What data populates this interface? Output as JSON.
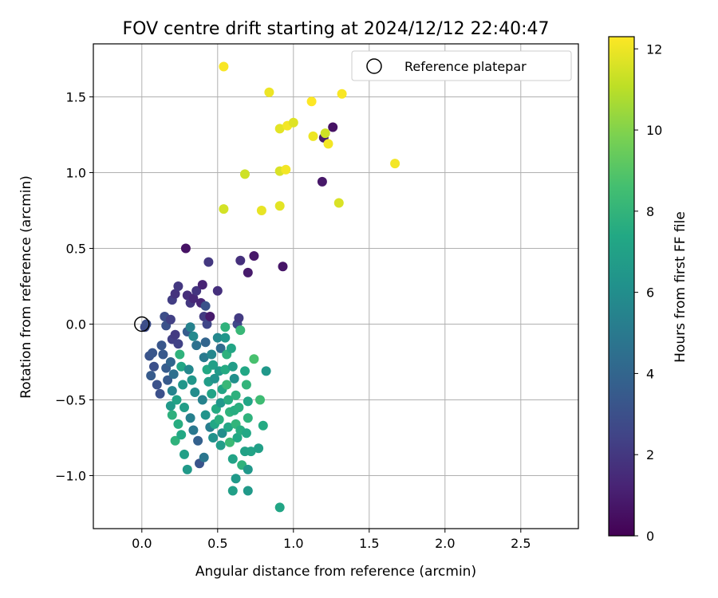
{
  "chart_data": {
    "type": "scatter",
    "title": "FOV centre drift starting at 2024/12/12 22:40:47",
    "xlabel": "Angular distance from reference (arcmin)",
    "ylabel": "Rotation from reference (arcmin)",
    "xlim": [
      -0.32,
      2.88
    ],
    "ylim": [
      -1.35,
      1.85
    ],
    "xticks": [
      0.0,
      0.5,
      1.0,
      1.5,
      2.0,
      2.5
    ],
    "xtick_labels": [
      "0.0",
      "0.5",
      "1.0",
      "1.5",
      "2.0",
      "2.5"
    ],
    "yticks": [
      -1.0,
      -0.5,
      0.0,
      0.5,
      1.0,
      1.5
    ],
    "ytick_labels": [
      "−1.0",
      "−0.5",
      "0.0",
      "0.5",
      "1.0",
      "1.5"
    ],
    "grid": true,
    "colormap": "viridis",
    "colorbar": {
      "label": "Hours from first FF file",
      "range": [
        0,
        12.3
      ],
      "ticks": [
        0,
        2,
        4,
        6,
        8,
        10,
        12
      ],
      "tick_labels": [
        "0",
        "2",
        "4",
        "6",
        "8",
        "10",
        "12"
      ]
    },
    "legend": {
      "position": "top-right",
      "entries": [
        {
          "label": "Reference platepar",
          "marker": "open-circle"
        }
      ]
    },
    "reference_point": {
      "x": 0.0,
      "y": 0.0
    },
    "points": [
      {
        "x": 0.02,
        "y": -0.02,
        "h": 2.8
      },
      {
        "x": 0.03,
        "y": 0.0,
        "h": 2.9
      },
      {
        "x": 0.05,
        "y": -0.21,
        "h": 3.2
      },
      {
        "x": 0.07,
        "y": -0.19,
        "h": 3.3
      },
      {
        "x": 0.08,
        "y": -0.28,
        "h": 3.0
      },
      {
        "x": 0.06,
        "y": -0.34,
        "h": 3.5
      },
      {
        "x": 0.1,
        "y": -0.4,
        "h": 3.1
      },
      {
        "x": 0.12,
        "y": -0.46,
        "h": 3.0
      },
      {
        "x": 0.13,
        "y": -0.14,
        "h": 3.3
      },
      {
        "x": 0.14,
        "y": -0.2,
        "h": 3.4
      },
      {
        "x": 0.16,
        "y": -0.29,
        "h": 3.6
      },
      {
        "x": 0.17,
        "y": -0.37,
        "h": 3.5
      },
      {
        "x": 0.15,
        "y": 0.05,
        "h": 2.9
      },
      {
        "x": 0.16,
        "y": -0.01,
        "h": 3.1
      },
      {
        "x": 0.19,
        "y": 0.03,
        "h": 2.3
      },
      {
        "x": 0.2,
        "y": 0.16,
        "h": 2.2
      },
      {
        "x": 0.22,
        "y": 0.2,
        "h": 1.8
      },
      {
        "x": 0.24,
        "y": 0.25,
        "h": 2.0
      },
      {
        "x": 0.2,
        "y": -0.1,
        "h": 2.3
      },
      {
        "x": 0.22,
        "y": -0.07,
        "h": 2.1
      },
      {
        "x": 0.24,
        "y": -0.13,
        "h": 2.4
      },
      {
        "x": 0.19,
        "y": -0.25,
        "h": 4.0
      },
      {
        "x": 0.21,
        "y": -0.33,
        "h": 4.5
      },
      {
        "x": 0.2,
        "y": -0.44,
        "h": 5.5
      },
      {
        "x": 0.19,
        "y": -0.54,
        "h": 6.6
      },
      {
        "x": 0.2,
        "y": -0.6,
        "h": 7.8
      },
      {
        "x": 0.23,
        "y": -0.5,
        "h": 7.0
      },
      {
        "x": 0.24,
        "y": -0.66,
        "h": 7.6
      },
      {
        "x": 0.22,
        "y": -0.77,
        "h": 7.9
      },
      {
        "x": 0.26,
        "y": -0.73,
        "h": 7.4
      },
      {
        "x": 0.28,
        "y": -0.86,
        "h": 6.9
      },
      {
        "x": 0.3,
        "y": -0.96,
        "h": 6.6
      },
      {
        "x": 0.25,
        "y": -0.2,
        "h": 7.9
      },
      {
        "x": 0.26,
        "y": -0.28,
        "h": 7.2
      },
      {
        "x": 0.27,
        "y": -0.4,
        "h": 6.4
      },
      {
        "x": 0.28,
        "y": -0.55,
        "h": 6.8
      },
      {
        "x": 0.29,
        "y": 0.5,
        "h": 0.6
      },
      {
        "x": 0.3,
        "y": 0.19,
        "h": 1.6
      },
      {
        "x": 0.32,
        "y": 0.14,
        "h": 2.0
      },
      {
        "x": 0.34,
        "y": 0.17,
        "h": 1.4
      },
      {
        "x": 0.36,
        "y": 0.22,
        "h": 1.9
      },
      {
        "x": 0.3,
        "y": -0.05,
        "h": 3.6
      },
      {
        "x": 0.32,
        "y": -0.02,
        "h": 5.4
      },
      {
        "x": 0.34,
        "y": -0.08,
        "h": 5.8
      },
      {
        "x": 0.36,
        "y": -0.14,
        "h": 4.6
      },
      {
        "x": 0.31,
        "y": -0.3,
        "h": 5.7
      },
      {
        "x": 0.33,
        "y": -0.37,
        "h": 6.4
      },
      {
        "x": 0.35,
        "y": -0.45,
        "h": 5.9
      },
      {
        "x": 0.32,
        "y": -0.62,
        "h": 5.3
      },
      {
        "x": 0.34,
        "y": -0.7,
        "h": 4.9
      },
      {
        "x": 0.37,
        "y": -0.77,
        "h": 3.8
      },
      {
        "x": 0.38,
        "y": -0.92,
        "h": 3.2
      },
      {
        "x": 0.4,
        "y": 0.26,
        "h": 1.2
      },
      {
        "x": 0.39,
        "y": 0.14,
        "h": 1.3
      },
      {
        "x": 0.42,
        "y": 0.12,
        "h": 3.1
      },
      {
        "x": 0.41,
        "y": 0.05,
        "h": 2.1
      },
      {
        "x": 0.43,
        "y": 0.0,
        "h": 2.6
      },
      {
        "x": 0.42,
        "y": -0.12,
        "h": 4.0
      },
      {
        "x": 0.41,
        "y": -0.22,
        "h": 5.0
      },
      {
        "x": 0.43,
        "y": -0.3,
        "h": 7.4
      },
      {
        "x": 0.44,
        "y": -0.38,
        "h": 6.8
      },
      {
        "x": 0.4,
        "y": -0.5,
        "h": 5.4
      },
      {
        "x": 0.42,
        "y": -0.6,
        "h": 6.3
      },
      {
        "x": 0.45,
        "y": -0.68,
        "h": 5.2
      },
      {
        "x": 0.41,
        "y": -0.88,
        "h": 4.8
      },
      {
        "x": 0.44,
        "y": 0.41,
        "h": 2.0
      },
      {
        "x": 0.45,
        "y": 0.05,
        "h": 0.9
      },
      {
        "x": 0.46,
        "y": -0.2,
        "h": 5.6
      },
      {
        "x": 0.47,
        "y": -0.27,
        "h": 6.9
      },
      {
        "x": 0.48,
        "y": -0.36,
        "h": 6.2
      },
      {
        "x": 0.46,
        "y": -0.46,
        "h": 7.1
      },
      {
        "x": 0.49,
        "y": -0.56,
        "h": 7.5
      },
      {
        "x": 0.48,
        "y": -0.66,
        "h": 7.3
      },
      {
        "x": 0.47,
        "y": -0.75,
        "h": 6.2
      },
      {
        "x": 0.5,
        "y": 0.22,
        "h": 1.7
      },
      {
        "x": 0.5,
        "y": -0.09,
        "h": 5.7
      },
      {
        "x": 0.52,
        "y": -0.16,
        "h": 4.3
      },
      {
        "x": 0.51,
        "y": -0.31,
        "h": 6.6
      },
      {
        "x": 0.53,
        "y": -0.43,
        "h": 7.2
      },
      {
        "x": 0.52,
        "y": -0.52,
        "h": 6.5
      },
      {
        "x": 0.51,
        "y": -0.63,
        "h": 7.7
      },
      {
        "x": 0.53,
        "y": -0.72,
        "h": 6.0
      },
      {
        "x": 0.52,
        "y": -0.8,
        "h": 6.8
      },
      {
        "x": 0.55,
        "y": -0.02,
        "h": 7.9
      },
      {
        "x": 0.55,
        "y": -0.09,
        "h": 6.4
      },
      {
        "x": 0.56,
        "y": -0.2,
        "h": 7.8
      },
      {
        "x": 0.55,
        "y": -0.3,
        "h": 7.5
      },
      {
        "x": 0.56,
        "y": -0.4,
        "h": 8.2
      },
      {
        "x": 0.57,
        "y": -0.5,
        "h": 7.6
      },
      {
        "x": 0.58,
        "y": -0.58,
        "h": 7.9
      },
      {
        "x": 0.57,
        "y": -0.68,
        "h": 7.3
      },
      {
        "x": 0.58,
        "y": -0.78,
        "h": 8.3
      },
      {
        "x": 0.6,
        "y": -0.89,
        "h": 7.1
      },
      {
        "x": 0.59,
        "y": -0.16,
        "h": 7.2
      },
      {
        "x": 0.6,
        "y": -0.28,
        "h": 6.8
      },
      {
        "x": 0.61,
        "y": -0.36,
        "h": 6.1
      },
      {
        "x": 0.62,
        "y": -0.47,
        "h": 7.8
      },
      {
        "x": 0.61,
        "y": -0.57,
        "h": 7.6
      },
      {
        "x": 0.62,
        "y": -0.66,
        "h": 8.0
      },
      {
        "x": 0.63,
        "y": -0.75,
        "h": 7.4
      },
      {
        "x": 0.62,
        "y": -1.02,
        "h": 6.6
      },
      {
        "x": 0.6,
        "y": -1.1,
        "h": 6.9
      },
      {
        "x": 0.63,
        "y": 0.0,
        "h": 2.6
      },
      {
        "x": 0.64,
        "y": 0.04,
        "h": 2.1
      },
      {
        "x": 0.65,
        "y": -0.04,
        "h": 8.2
      },
      {
        "x": 0.64,
        "y": -0.55,
        "h": 7.7
      },
      {
        "x": 0.65,
        "y": -0.7,
        "h": 7.6
      },
      {
        "x": 0.68,
        "y": -0.84,
        "h": 7.0
      },
      {
        "x": 0.66,
        "y": -0.93,
        "h": 7.9
      },
      {
        "x": 0.65,
        "y": 0.42,
        "h": 1.7
      },
      {
        "x": 0.7,
        "y": 0.34,
        "h": 0.9
      },
      {
        "x": 0.68,
        "y": -0.31,
        "h": 7.3
      },
      {
        "x": 0.69,
        "y": -0.4,
        "h": 8.0
      },
      {
        "x": 0.7,
        "y": -0.51,
        "h": 7.2
      },
      {
        "x": 0.7,
        "y": -0.62,
        "h": 7.9
      },
      {
        "x": 0.69,
        "y": -0.72,
        "h": 7.3
      },
      {
        "x": 0.7,
        "y": -0.96,
        "h": 6.5
      },
      {
        "x": 0.7,
        "y": -1.1,
        "h": 6.6
      },
      {
        "x": 0.72,
        "y": -0.84,
        "h": 7.1
      },
      {
        "x": 0.74,
        "y": 0.45,
        "h": 0.8
      },
      {
        "x": 0.74,
        "y": -0.23,
        "h": 8.7
      },
      {
        "x": 0.77,
        "y": -0.82,
        "h": 6.9
      },
      {
        "x": 0.78,
        "y": -0.5,
        "h": 8.4
      },
      {
        "x": 0.8,
        "y": -0.67,
        "h": 7.5
      },
      {
        "x": 0.82,
        "y": -0.31,
        "h": 6.5
      },
      {
        "x": 0.91,
        "y": -1.21,
        "h": 7.2
      },
      {
        "x": 0.93,
        "y": 0.38,
        "h": 0.7
      },
      {
        "x": 1.19,
        "y": 0.94,
        "h": 0.8
      },
      {
        "x": 1.2,
        "y": 1.23,
        "h": 0.9
      },
      {
        "x": 1.26,
        "y": 1.3,
        "h": 0.6
      },
      {
        "x": 0.54,
        "y": 1.7,
        "h": 12.2
      },
      {
        "x": 0.84,
        "y": 1.53,
        "h": 12.0
      },
      {
        "x": 0.91,
        "y": 1.29,
        "h": 11.8
      },
      {
        "x": 0.96,
        "y": 1.31,
        "h": 12.1
      },
      {
        "x": 1.0,
        "y": 1.33,
        "h": 11.7
      },
      {
        "x": 1.12,
        "y": 1.47,
        "h": 12.3
      },
      {
        "x": 1.13,
        "y": 1.24,
        "h": 12.0
      },
      {
        "x": 1.21,
        "y": 1.26,
        "h": 11.4
      },
      {
        "x": 1.23,
        "y": 1.19,
        "h": 12.1
      },
      {
        "x": 1.32,
        "y": 1.52,
        "h": 12.2
      },
      {
        "x": 0.68,
        "y": 0.99,
        "h": 11.4
      },
      {
        "x": 0.91,
        "y": 1.01,
        "h": 11.6
      },
      {
        "x": 0.95,
        "y": 1.02,
        "h": 12.1
      },
      {
        "x": 0.54,
        "y": 0.76,
        "h": 11.5
      },
      {
        "x": 0.79,
        "y": 0.75,
        "h": 11.9
      },
      {
        "x": 0.91,
        "y": 0.78,
        "h": 11.8
      },
      {
        "x": 1.3,
        "y": 0.8,
        "h": 11.6
      },
      {
        "x": 1.67,
        "y": 1.06,
        "h": 12.1
      }
    ]
  }
}
